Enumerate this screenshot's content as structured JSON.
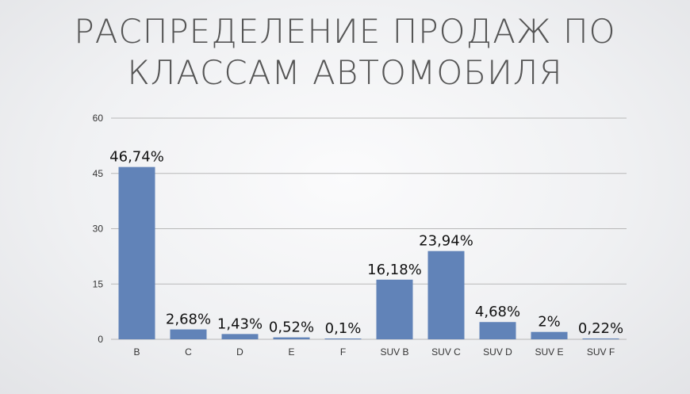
{
  "chart_data": {
    "type": "bar",
    "title_lines": [
      "РАСПРЕДЕЛЕНИЕ ПРОДАЖ ПО",
      "КЛАССАМ АВТОМОБИЛЯ"
    ],
    "categories": [
      "B",
      "C",
      "D",
      "E",
      "F",
      "SUV B",
      "SUV C",
      "SUV D",
      "SUV E",
      "SUV F"
    ],
    "values": [
      46.74,
      2.68,
      1.43,
      0.52,
      0.1,
      16.18,
      23.94,
      4.68,
      2,
      0.22
    ],
    "data_labels": [
      "46,74%",
      "2,68%",
      "1,43%",
      "0,52%",
      "0,1%",
      "16,18%",
      "23,94%",
      "4,68%",
      "2%",
      "0,22%"
    ],
    "ylim": [
      0,
      60
    ],
    "yticks": [
      "0",
      "15",
      "30",
      "45",
      "60"
    ],
    "ytick_values": [
      0,
      15,
      30,
      45,
      60
    ],
    "grid": true,
    "legend": "none",
    "bar_color": "#6183b8",
    "grid_color": "#b8b8b8"
  }
}
